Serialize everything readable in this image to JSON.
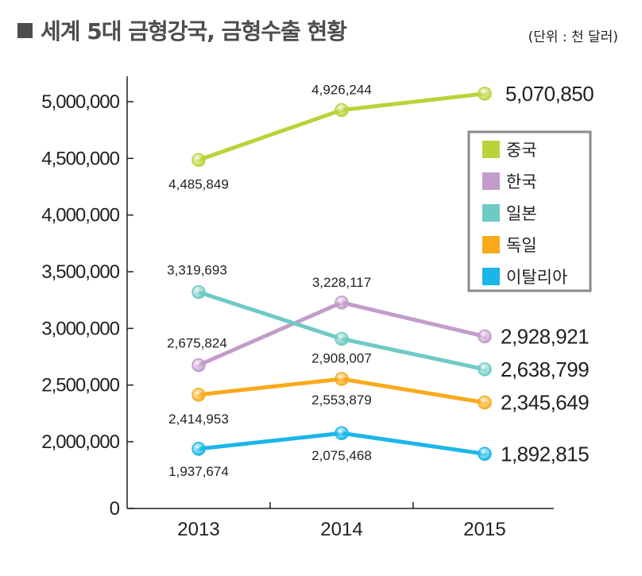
{
  "title": "세계 5대 금형강국, 금형수출 현황",
  "unit_label": "(단위 : 천 달러)",
  "chart_data": {
    "type": "line",
    "categories": [
      "2013",
      "2014",
      "2015"
    ],
    "yticks": [
      "0",
      "2,000,000",
      "2,500,000",
      "3,000,000",
      "3,500,000",
      "4,000,000",
      "4,500,000",
      "5,000,000"
    ],
    "series": [
      {
        "name": "중국",
        "color": "#b8d43a",
        "values": [
          4485849,
          4926244,
          5070850
        ],
        "labels": [
          "4,485,849",
          "4,926,244",
          "5,070,850"
        ]
      },
      {
        "name": "한국",
        "color": "#c29dcb",
        "values": [
          2675824,
          3228117,
          2928921
        ],
        "labels": [
          "2,675,824",
          "3,228,117",
          "2,928,921"
        ]
      },
      {
        "name": "일본",
        "color": "#6fcac5",
        "values": [
          3319693,
          2908007,
          2638799
        ],
        "labels": [
          "3,319,693",
          "2,908,007",
          "2,638,799"
        ]
      },
      {
        "name": "독일",
        "color": "#f9aa1b",
        "values": [
          2414953,
          2553879,
          2345649
        ],
        "labels": [
          "2,414,953",
          "2,553,879",
          "2,345,649"
        ]
      },
      {
        "name": "이탈리아",
        "color": "#1bb6e8",
        "values": [
          1937674,
          2075468,
          1892815
        ],
        "labels": [
          "1,937,674",
          "2,075,468",
          "1,892,815"
        ]
      }
    ],
    "legend_position": "top-right"
  }
}
